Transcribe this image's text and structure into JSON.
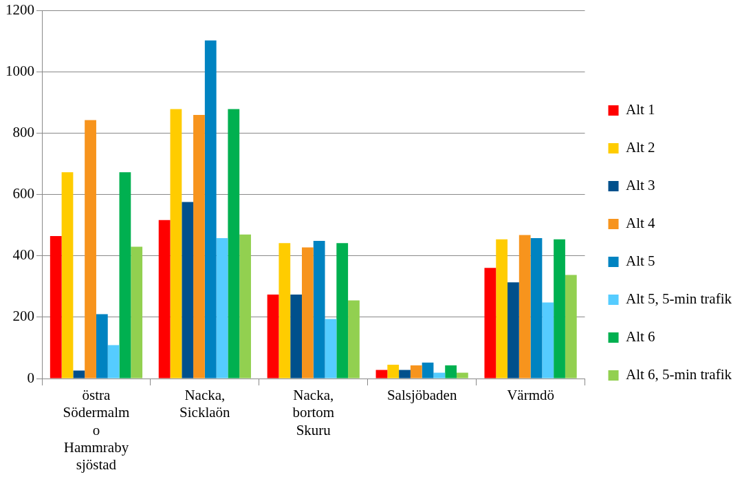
{
  "chart_data": {
    "type": "bar",
    "categories": [
      "östra Södermalm o Hammraby sjöstad",
      "Nacka, Sicklaön",
      "Nacka, bortom Skuru",
      "Salsjöbaden",
      "Värmdö"
    ],
    "series": [
      {
        "name": "Alt 1",
        "color": "#ff0000",
        "values": [
          465,
          517,
          274,
          28,
          361
        ]
      },
      {
        "name": "Alt 2",
        "color": "#ffcc00",
        "values": [
          673,
          879,
          442,
          45,
          454
        ]
      },
      {
        "name": "Alt 3",
        "color": "#00508c",
        "values": [
          26,
          576,
          274,
          28,
          314
        ]
      },
      {
        "name": "Alt 4",
        "color": "#f7941d",
        "values": [
          843,
          860,
          428,
          43,
          468
        ]
      },
      {
        "name": "Alt 5",
        "color": "#0083c1",
        "values": [
          210,
          1103,
          449,
          52,
          458
        ]
      },
      {
        "name": "Alt 5, 5-min trafik",
        "color": "#55ccff",
        "values": [
          109,
          458,
          194,
          19,
          248
        ]
      },
      {
        "name": "Alt 6",
        "color": "#00b050",
        "values": [
          673,
          879,
          442,
          43,
          454
        ]
      },
      {
        "name": "Alt 6, 5-min trafik",
        "color": "#92d050",
        "values": [
          430,
          470,
          255,
          19,
          338
        ]
      }
    ],
    "ylim": [
      0,
      1200
    ],
    "yticks": [
      0,
      200,
      400,
      600,
      800,
      1000,
      1200
    ],
    "grid": "y",
    "legend": "right"
  }
}
